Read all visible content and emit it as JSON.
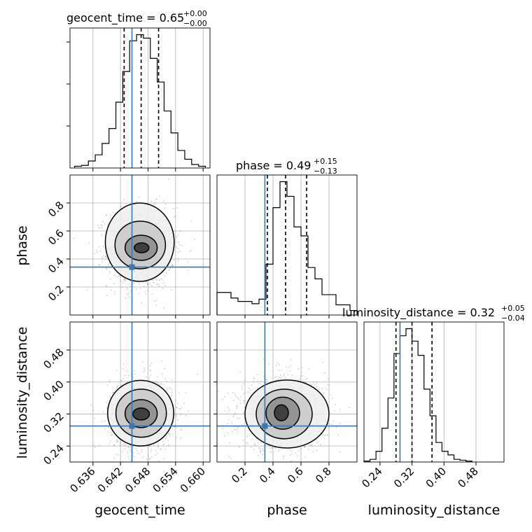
{
  "chart_data": {
    "type": "corner",
    "parameters": [
      "geocent_time",
      "phase",
      "luminosity_distance"
    ],
    "axis_labels": [
      "geocent_time",
      "phase",
      "luminosity_distance"
    ],
    "truth_color": "#3b78b0",
    "truths": {
      "geocent_time": 0.6445,
      "phase": 0.342,
      "luminosity_distance": 0.29
    },
    "ranges": {
      "geocent_time": [
        0.631,
        0.6615
      ],
      "phase": [
        0.0,
        1.0
      ],
      "luminosity_distance": [
        0.2,
        0.55
      ]
    },
    "ticks": {
      "geocent_time": [
        0.636,
        0.642,
        0.648,
        0.654,
        0.66
      ],
      "phase": [
        0.2,
        0.4,
        0.6,
        0.8
      ],
      "luminosity_distance": [
        0.24,
        0.32,
        0.4,
        0.48
      ]
    },
    "tick_labels": {
      "geocent_time": [
        "0.636",
        "0.642",
        "0.648",
        "0.654",
        "0.660"
      ],
      "phase": [
        "0.2",
        "0.4",
        "0.6",
        "0.8"
      ],
      "luminosity_distance": [
        "0.24",
        "0.32",
        "0.40",
        "0.48"
      ]
    },
    "titles": {
      "geocent_time": {
        "text": "geocent_time = 0.65",
        "plus": "+0.00",
        "minus": "−0.00"
      },
      "phase": {
        "text": "phase = 0.49",
        "plus": "+0.15",
        "minus": "−0.13"
      },
      "luminosity_distance": {
        "text": "luminosity_distance = 0.32",
        "plus": "+0.05",
        "minus": "−0.04"
      }
    },
    "quantiles": {
      "geocent_time": [
        0.6428,
        0.6465,
        0.6503
      ],
      "phase": [
        0.36,
        0.49,
        0.64
      ],
      "luminosity_distance": [
        0.28,
        0.32,
        0.37
      ]
    },
    "histograms": {
      "geocent_time": {
        "edges": [
          0.632,
          0.6335,
          0.635,
          0.6365,
          0.638,
          0.6395,
          0.641,
          0.6425,
          0.644,
          0.6455,
          0.647,
          0.6485,
          0.65,
          0.6515,
          0.653,
          0.6545,
          0.656,
          0.6575,
          0.659,
          0.6605
        ],
        "counts": [
          2,
          3,
          8,
          15,
          28,
          45,
          75,
          110,
          145,
          152,
          148,
          125,
          98,
          65,
          40,
          20,
          10,
          4,
          2
        ]
      },
      "phase": {
        "edges": [
          0.0,
          0.05,
          0.1,
          0.15,
          0.2,
          0.25,
          0.3,
          0.35,
          0.4,
          0.45,
          0.5,
          0.55,
          0.6,
          0.65,
          0.7,
          0.75,
          0.8,
          0.85,
          0.9,
          0.95,
          1.0
        ],
        "counts": [
          20,
          20,
          15,
          12,
          12,
          10,
          14,
          45,
          95,
          118,
          105,
          78,
          70,
          42,
          32,
          18,
          18,
          9,
          9,
          4
        ]
      },
      "luminosity_distance": {
        "edges": [
          0.2,
          0.215,
          0.23,
          0.245,
          0.26,
          0.275,
          0.29,
          0.305,
          0.32,
          0.335,
          0.35,
          0.365,
          0.38,
          0.395,
          0.41,
          0.425,
          0.44,
          0.455,
          0.47
        ],
        "counts": [
          1,
          3,
          12,
          38,
          72,
          122,
          142,
          150,
          136,
          120,
          82,
          52,
          22,
          12,
          8,
          3,
          2,
          1
        ]
      }
    },
    "joint_2d": [
      {
        "x": "geocent_time",
        "y": "phase",
        "center": [
          0.6465,
          0.48
        ],
        "sd": [
          0.0028,
          0.11
        ],
        "contours": [
          {
            "level": 1,
            "cx": 0.6466,
            "cy": 0.48,
            "rx": 0.0016,
            "ry": 0.035
          },
          {
            "level": 2,
            "cx": 0.6465,
            "cy": 0.48,
            "rx": 0.0035,
            "ry": 0.09
          },
          {
            "level": 3,
            "cx": 0.6463,
            "cy": 0.5,
            "rx": 0.0055,
            "ry": 0.17
          },
          {
            "level": 4,
            "cx": 0.6462,
            "cy": 0.52,
            "rx": 0.0075,
            "ry": 0.28
          }
        ]
      },
      {
        "x": "geocent_time",
        "y": "luminosity_distance",
        "center": [
          0.6465,
          0.32
        ],
        "sd": [
          0.0026,
          0.035
        ],
        "contours": [
          {
            "level": 1,
            "cx": 0.6465,
            "cy": 0.32,
            "rx": 0.0018,
            "ry": 0.015
          },
          {
            "level": 2,
            "cx": 0.6465,
            "cy": 0.321,
            "rx": 0.0035,
            "ry": 0.035
          },
          {
            "level": 3,
            "cx": 0.6465,
            "cy": 0.322,
            "rx": 0.0055,
            "ry": 0.06
          },
          {
            "level": 4,
            "cx": 0.6464,
            "cy": 0.322,
            "rx": 0.0072,
            "ry": 0.082
          }
        ]
      },
      {
        "x": "phase",
        "y": "luminosity_distance",
        "center": [
          0.47,
          0.32
        ],
        "sd": [
          0.12,
          0.035
        ],
        "contours": [
          {
            "level": 1,
            "cx": 0.46,
            "cy": 0.323,
            "rx": 0.05,
            "ry": 0.02
          },
          {
            "level": 2,
            "cx": 0.47,
            "cy": 0.322,
            "rx": 0.12,
            "ry": 0.04
          },
          {
            "level": 3,
            "cx": 0.48,
            "cy": 0.32,
            "rx": 0.2,
            "ry": 0.062
          },
          {
            "level": 4,
            "cx": 0.5,
            "cy": 0.32,
            "rx": 0.3,
            "ry": 0.085
          }
        ]
      }
    ]
  }
}
